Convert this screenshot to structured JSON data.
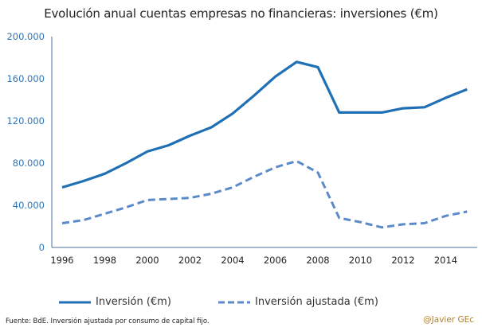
{
  "chart_data": {
    "type": "line",
    "title": "Evolución anual cuentas empresas no financieras: inversiones (€m)",
    "xlabel": "",
    "ylabel": "",
    "x": [
      1996,
      1997,
      1998,
      1999,
      2000,
      2001,
      2002,
      2003,
      2004,
      2005,
      2006,
      2007,
      2008,
      2009,
      2010,
      2011,
      2012,
      2013,
      2014,
      2015
    ],
    "x_ticks": [
      "1996",
      "1998",
      "2000",
      "2002",
      "2004",
      "2006",
      "2008",
      "2010",
      "2012",
      "2014"
    ],
    "x_tick_values": [
      1996,
      1998,
      2000,
      2002,
      2004,
      2006,
      2008,
      2010,
      2012,
      2014
    ],
    "y_ticks": [
      "0",
      "40.000",
      "80.000",
      "120.000",
      "160.000",
      "200.000"
    ],
    "y_tick_values": [
      0,
      40000,
      80000,
      120000,
      160000,
      200000
    ],
    "xlim": [
      1995.5,
      2015.5
    ],
    "ylim": [
      0,
      200000
    ],
    "grid": false,
    "legend_position": "bottom",
    "series": [
      {
        "name": "Inversión (€m)",
        "style": "solid",
        "color": "#1f6fb5",
        "values": [
          57000,
          63000,
          70000,
          80000,
          91000,
          97000,
          106000,
          114000,
          127000,
          144000,
          162000,
          176000,
          171000,
          128000,
          128000,
          128000,
          132000,
          133000,
          142000,
          150000
        ]
      },
      {
        "name": "Inversión ajustada (€m)",
        "style": "dashed",
        "color": "#5b8ac9",
        "values": [
          23000,
          26000,
          32000,
          38000,
          45000,
          46000,
          47000,
          51000,
          57000,
          67000,
          76000,
          82000,
          71000,
          28000,
          24000,
          19000,
          22000,
          23000,
          30000,
          34000
        ]
      }
    ]
  },
  "footer": {
    "source": "Fuente: BdE. Inversión ajustada por consumo  de capital fijo.",
    "credit": "@Javier GEc"
  }
}
